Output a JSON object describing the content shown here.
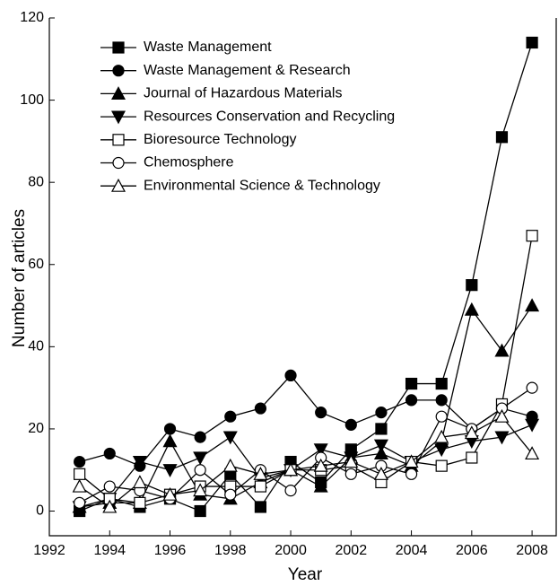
{
  "chart_data": {
    "type": "line",
    "x_label": "Year",
    "y_label": "Number of articles",
    "x": [
      1993,
      1994,
      1995,
      1996,
      1997,
      1998,
      1999,
      2000,
      2001,
      2002,
      2003,
      2004,
      2005,
      2006,
      2007,
      2008
    ],
    "xlim": [
      1992,
      2008.8
    ],
    "xticks": [
      1992,
      1994,
      1996,
      1998,
      2000,
      2002,
      2004,
      2006,
      2008
    ],
    "ylim": [
      -6,
      120
    ],
    "yticks": [
      0,
      20,
      40,
      60,
      80,
      100,
      120
    ],
    "legend": "upper left",
    "series": [
      {
        "name": "Waste Management",
        "color": "#000000",
        "marker": "square",
        "filled": true,
        "values": [
          0,
          3,
          1,
          3,
          0,
          9,
          1,
          12,
          7,
          15,
          20,
          31,
          31,
          55,
          91,
          114
        ]
      },
      {
        "name": "Waste Management & Research",
        "color": "#000000",
        "marker": "circle",
        "filled": true,
        "values": [
          12,
          14,
          11,
          20,
          18,
          23,
          25,
          33,
          24,
          21,
          24,
          27,
          27,
          20,
          25,
          23
        ]
      },
      {
        "name": "Journal of Hazardous Materials",
        "color": "#000000",
        "marker": "triangle-up",
        "filled": true,
        "values": [
          1,
          2,
          2,
          17,
          4,
          3,
          7,
          10,
          6,
          13,
          14,
          11,
          17,
          49,
          39,
          50
        ]
      },
      {
        "name": "Resources Conservation and Recycling",
        "color": "#000000",
        "marker": "triangle-down",
        "filled": true,
        "values": [
          1,
          3,
          12,
          10,
          13,
          18,
          8,
          10,
          15,
          13,
          16,
          12,
          15,
          17,
          18,
          21
        ]
      },
      {
        "name": "Bioresource Technology",
        "color": "#000000",
        "marker": "square",
        "filled": false,
        "values": [
          9,
          3,
          2,
          4,
          6,
          6,
          6,
          10,
          10,
          11,
          7,
          12,
          11,
          13,
          26,
          67
        ]
      },
      {
        "name": "Chemosphere",
        "color": "#000000",
        "marker": "circle",
        "filled": false,
        "values": [
          2,
          6,
          5,
          3,
          10,
          4,
          10,
          5,
          13,
          9,
          11,
          9,
          23,
          20,
          25,
          30
        ]
      },
      {
        "name": "Environmental Science & Technology",
        "color": "#000000",
        "marker": "triangle-up",
        "filled": false,
        "values": [
          6,
          1,
          7,
          4,
          5,
          11,
          9,
          10,
          11,
          12,
          9,
          12,
          18,
          19,
          23,
          14
        ]
      }
    ]
  }
}
